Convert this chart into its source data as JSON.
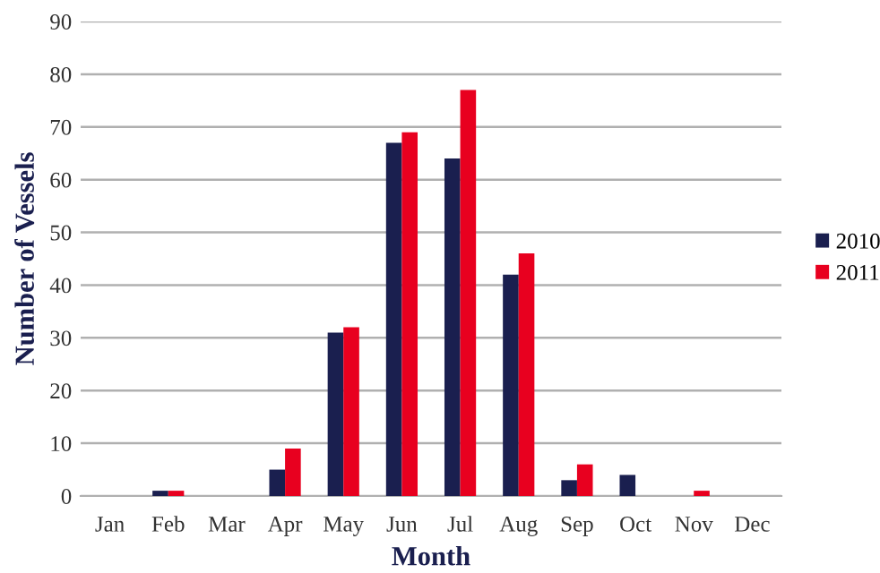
{
  "chart_data": {
    "type": "bar",
    "xlabel": "Month",
    "ylabel": "Number of Vessels",
    "categories": [
      "Jan",
      "Feb",
      "Mar",
      "Apr",
      "May",
      "Jun",
      "Jul",
      "Aug",
      "Sep",
      "Oct",
      "Nov",
      "Dec"
    ],
    "series": [
      {
        "name": "2010",
        "color": "#1a1f4f",
        "values": [
          0,
          1,
          0,
          5,
          31,
          67,
          64,
          42,
          3,
          4,
          0,
          0
        ]
      },
      {
        "name": "2011",
        "color": "#e8001f",
        "values": [
          0,
          1,
          0,
          9,
          32,
          69,
          77,
          46,
          6,
          0,
          1,
          0
        ]
      }
    ],
    "ylim": [
      0,
      90
    ],
    "yticks": [
      0,
      10,
      20,
      30,
      40,
      50,
      60,
      70,
      80,
      90
    ],
    "grid": "y",
    "legend": "right"
  }
}
